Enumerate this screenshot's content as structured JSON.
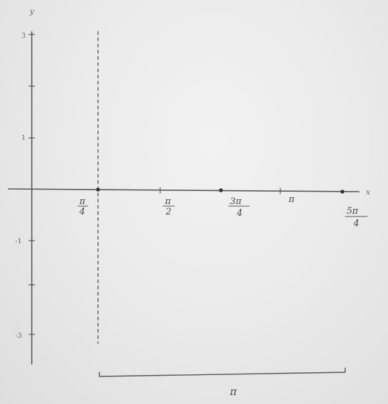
{
  "axes": {
    "x_label": "x",
    "y_label": "y"
  },
  "y_ticks": [
    {
      "value": 3,
      "label": "3"
    },
    {
      "value": 1,
      "label": "1"
    },
    {
      "value": -1,
      "label": "-1"
    },
    {
      "value": -3,
      "label": "-3"
    }
  ],
  "x_points": [
    {
      "num": "π",
      "den": "4"
    },
    {
      "num": "π",
      "den": "2"
    },
    {
      "num": "3π",
      "den": "4"
    },
    {
      "num": "π",
      "den": ""
    },
    {
      "num": "5π",
      "den": "4"
    }
  ],
  "asymptote": "x = π/4",
  "marked_points": [
    "π/4",
    "3π/4",
    "5π/4"
  ],
  "brace_label": "π",
  "colors": {
    "ink": "#555555",
    "board": "#ebebeb"
  }
}
